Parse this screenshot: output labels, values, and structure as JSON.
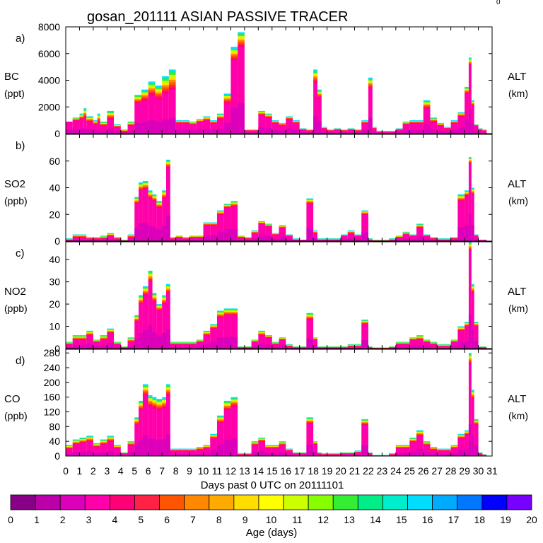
{
  "chart_data": {
    "type": "area",
    "title": "gosan_201111 ASIAN PASSIVE TRACER",
    "corner_mark": "0",
    "xlabel": "Days past 0 UTC on 20111101",
    "x_ticks": [
      "0",
      "1",
      "2",
      "3",
      "4",
      "5",
      "6",
      "7",
      "8",
      "9",
      "10",
      "11",
      "12",
      "13",
      "14",
      "15",
      "16",
      "17",
      "18",
      "19",
      "20",
      "21",
      "22",
      "23",
      "24",
      "25",
      "26",
      "27",
      "28",
      "29",
      "30",
      "31"
    ],
    "xlim": [
      0,
      31
    ],
    "panels": [
      {
        "letter": "a)",
        "species": "BC",
        "unit": "(ppt)",
        "right_label": "ALT",
        "right_unit": "(km)",
        "ylim": [
          0,
          8000
        ],
        "y_ticks": [
          "0",
          "2000",
          "4000",
          "6000",
          "8000"
        ],
        "x": [
          0,
          0.5,
          1,
          1.3,
          1.5,
          2,
          2.3,
          2.5,
          3,
          3.5,
          4,
          4.5,
          5,
          5.5,
          6,
          6.5,
          7,
          7.5,
          8,
          8.5,
          9,
          9.5,
          10,
          10.5,
          11,
          11.5,
          12,
          12.5,
          13,
          13.5,
          14,
          14.5,
          15,
          15.5,
          16,
          16.5,
          17,
          17.5,
          18,
          18.3,
          18.6,
          19,
          19.5,
          20,
          20.5,
          21,
          21.5,
          22,
          22.3,
          22.6,
          23,
          23.5,
          24,
          24.5,
          25,
          25.5,
          26,
          26.5,
          27,
          27.5,
          28,
          28.5,
          29,
          29.3,
          29.5,
          29.7,
          30,
          30.3
        ],
        "values": [
          700,
          1200,
          1500,
          1900,
          1300,
          1000,
          1500,
          900,
          1700,
          700,
          300,
          900,
          2900,
          3300,
          3900,
          3600,
          4300,
          4800,
          1000,
          1000,
          900,
          1100,
          1300,
          1000,
          1500,
          3000,
          6500,
          7600,
          300,
          300,
          1700,
          1500,
          1000,
          800,
          1300,
          1000,
          400,
          300,
          4800,
          3300,
          500,
          300,
          400,
          300,
          400,
          300,
          1000,
          4200,
          500,
          200,
          200,
          200,
          400,
          900,
          1000,
          1000,
          2500,
          1200,
          800,
          500,
          1000,
          1600,
          3500,
          5700,
          2500,
          700,
          400,
          300
        ],
        "colors_base": [
          900,
          1000,
          1100,
          1200,
          900,
          700,
          900,
          600,
          1100,
          500,
          200,
          600,
          2300,
          2500,
          2900,
          2600,
          3000,
          3300,
          800,
          800,
          700,
          900,
          1000,
          800,
          1100,
          2300,
          5500,
          6500,
          250,
          250,
          1400,
          1200,
          800,
          650,
          1100,
          800,
          300,
          250,
          3800,
          2700,
          400,
          250,
          300,
          250,
          300,
          250,
          800,
          3400,
          400,
          150,
          150,
          150,
          300,
          700,
          800,
          800,
          1900,
          900,
          600,
          400,
          800,
          1300,
          3000,
          5100,
          2100,
          600,
          300,
          250
        ]
      },
      {
        "letter": "b)",
        "species": "SO2",
        "unit": "(ppb)",
        "right_label": "ALT",
        "right_unit": "(km)",
        "ylim": [
          0,
          80
        ],
        "y_ticks": [
          "0",
          "20",
          "40",
          "60"
        ],
        "x": [
          0,
          0.5,
          1,
          1.5,
          2,
          2.5,
          3,
          3.5,
          4,
          4.5,
          5,
          5.3,
          5.6,
          6,
          6.3,
          6.6,
          7,
          7.3,
          7.6,
          8,
          8.5,
          9,
          9.5,
          10,
          10.5,
          11,
          11.5,
          12,
          12.5,
          13,
          13.5,
          14,
          14.5,
          15,
          15.5,
          16,
          16.5,
          17,
          17.5,
          18,
          18.3,
          18.6,
          19,
          19.5,
          20,
          20.5,
          21,
          21.5,
          22,
          22.3,
          22.6,
          23,
          23.5,
          24,
          24.5,
          25,
          25.5,
          26,
          26.5,
          27,
          27.5,
          28,
          28.5,
          29,
          29.3,
          29.5,
          29.7,
          30,
          30.3
        ],
        "values": [
          2,
          5,
          5,
          3,
          3,
          4,
          6,
          3,
          1,
          5,
          33,
          44,
          45,
          38,
          35,
          30,
          38,
          61,
          3,
          4,
          3,
          4,
          4,
          14,
          14,
          23,
          28,
          30,
          4,
          3,
          8,
          15,
          13,
          6,
          12,
          5,
          2,
          1,
          32,
          8,
          2,
          2,
          2,
          2,
          5,
          8,
          5,
          23,
          2,
          1,
          1,
          1,
          2,
          4,
          7,
          5,
          13,
          5,
          3,
          2,
          2,
          3,
          35,
          38,
          63,
          40,
          5,
          1,
          1
        ],
        "colors_base": [
          1,
          3,
          3,
          2,
          2,
          2,
          4,
          2,
          0.5,
          3,
          28,
          38,
          39,
          32,
          30,
          25,
          32,
          55,
          2,
          3,
          2,
          3,
          3,
          12,
          12,
          20,
          25,
          26,
          3,
          2,
          6,
          13,
          11,
          5,
          10,
          4,
          1,
          1,
          28,
          6,
          1,
          1,
          1,
          1,
          4,
          6,
          4,
          20,
          1,
          0.5,
          0.5,
          0.5,
          1,
          3,
          5,
          4,
          10,
          4,
          2,
          1,
          1,
          2,
          30,
          34,
          58,
          35,
          4,
          1,
          1
        ]
      },
      {
        "letter": "c)",
        "species": "NO2",
        "unit": "(ppb)",
        "right_label": "ALT",
        "right_unit": "(km)",
        "ylim": [
          0,
          48
        ],
        "y_ticks": [
          "0",
          "10",
          "20",
          "30",
          "40"
        ],
        "x": [
          0,
          0.5,
          1,
          1.5,
          2,
          2.5,
          3,
          3.5,
          4,
          4.5,
          5,
          5.3,
          5.6,
          6,
          6.3,
          6.6,
          7,
          7.3,
          7.6,
          8,
          8.5,
          9,
          9.5,
          10,
          10.5,
          11,
          11.5,
          12,
          12.5,
          13,
          13.5,
          14,
          14.5,
          15,
          15.5,
          16,
          16.5,
          17,
          17.5,
          18,
          18.3,
          18.6,
          19,
          19.5,
          20,
          20.5,
          21,
          21.5,
          22,
          22.3,
          22.6,
          23,
          23.5,
          24,
          24.5,
          25,
          25.5,
          26,
          26.5,
          27,
          27.5,
          28,
          28.5,
          29,
          29.3,
          29.5,
          29.7,
          30,
          30.3
        ],
        "values": [
          3,
          6,
          6,
          8,
          4,
          6,
          9,
          3,
          1,
          5,
          15,
          24,
          28,
          35,
          25,
          20,
          24,
          29,
          3,
          3,
          3,
          3,
          4,
          8,
          11,
          17,
          18,
          18,
          1,
          1,
          4,
          8,
          6,
          3,
          5,
          2,
          1,
          1,
          16,
          5,
          1,
          1,
          1,
          1,
          1,
          2,
          2,
          13,
          1,
          0.5,
          0.5,
          0.5,
          1,
          3,
          3,
          5,
          6,
          4,
          3,
          2,
          2,
          4,
          10,
          12,
          48,
          29,
          12,
          1,
          1
        ],
        "colors_base": [
          2,
          4,
          4,
          6,
          3,
          4,
          7,
          2,
          0.5,
          3,
          12,
          20,
          24,
          30,
          21,
          17,
          20,
          25,
          2,
          2,
          2,
          2,
          3,
          6,
          9,
          14,
          15,
          15,
          0.5,
          0.5,
          3,
          6,
          5,
          2,
          4,
          1,
          0.5,
          0.5,
          13,
          4,
          0.5,
          0.5,
          0.5,
          0.5,
          0.5,
          1,
          1,
          11,
          0.5,
          0.3,
          0.3,
          0.3,
          0.5,
          2,
          2,
          4,
          4,
          3,
          2,
          1,
          1,
          3,
          8,
          10,
          44,
          25,
          10,
          0.5,
          0.5
        ]
      },
      {
        "letter": "d)",
        "species": "CO",
        "unit": "(ppb)",
        "right_label": "ALT",
        "right_unit": "(km)",
        "ylim": [
          0,
          290
        ],
        "y_ticks": [
          "0",
          "40",
          "80",
          "120",
          "160",
          "200",
          "240",
          "280"
        ],
        "x": [
          0,
          0.5,
          1,
          1.5,
          2,
          2.5,
          3,
          3.5,
          4,
          4.5,
          5,
          5.3,
          5.6,
          6,
          6.3,
          6.6,
          7,
          7.3,
          7.6,
          8,
          8.5,
          9,
          9.5,
          10,
          10.5,
          11,
          11.5,
          12,
          12.5,
          13,
          13.5,
          14,
          14.5,
          15,
          15.5,
          16,
          16.5,
          17,
          17.5,
          18,
          18.3,
          18.6,
          19,
          19.5,
          20,
          20.5,
          21,
          21.5,
          22,
          22.3,
          22.6,
          23,
          23.5,
          24,
          24.5,
          25,
          25.5,
          26,
          26.5,
          27,
          27.5,
          28,
          28.5,
          29,
          29.3,
          29.5,
          29.7,
          30,
          30.3
        ],
        "values": [
          30,
          45,
          50,
          55,
          35,
          45,
          55,
          30,
          10,
          40,
          105,
          150,
          195,
          165,
          160,
          155,
          160,
          195,
          20,
          20,
          20,
          20,
          25,
          30,
          60,
          110,
          150,
          160,
          8,
          8,
          40,
          50,
          30,
          30,
          40,
          20,
          10,
          10,
          105,
          40,
          10,
          8,
          8,
          8,
          10,
          10,
          15,
          100,
          10,
          3,
          3,
          3,
          8,
          30,
          30,
          50,
          70,
          40,
          25,
          20,
          20,
          30,
          60,
          70,
          280,
          180,
          100,
          10,
          5
        ],
        "colors_base": [
          20,
          32,
          36,
          40,
          25,
          32,
          40,
          22,
          7,
          30,
          85,
          125,
          165,
          135,
          130,
          125,
          130,
          165,
          15,
          15,
          15,
          15,
          18,
          22,
          48,
          90,
          125,
          135,
          5,
          5,
          30,
          40,
          22,
          22,
          30,
          15,
          7,
          7,
          88,
          32,
          7,
          5,
          5,
          5,
          7,
          7,
          10,
          85,
          7,
          2,
          2,
          2,
          5,
          22,
          22,
          38,
          55,
          30,
          18,
          15,
          15,
          22,
          48,
          58,
          250,
          155,
          85,
          7,
          3
        ]
      }
    ],
    "colorbar": {
      "label": "Age (days)",
      "ticks": [
        "0",
        "1",
        "2",
        "3",
        "4",
        "5",
        "6",
        "7",
        "8",
        "9",
        "10",
        "11",
        "12",
        "13",
        "14",
        "15",
        "16",
        "17",
        "18",
        "19",
        "20"
      ],
      "colors": [
        "#880088",
        "#bb00aa",
        "#dd00bb",
        "#ff00aa",
        "#ff0077",
        "#ff2244",
        "#ff5500",
        "#ff8800",
        "#ffaa00",
        "#ffdd00",
        "#ffff00",
        "#ccff00",
        "#88ff00",
        "#33ee33",
        "#00ee88",
        "#00eecc",
        "#00ddff",
        "#00aaff",
        "#0077ff",
        "#0000ff",
        "#7700ff"
      ]
    }
  }
}
